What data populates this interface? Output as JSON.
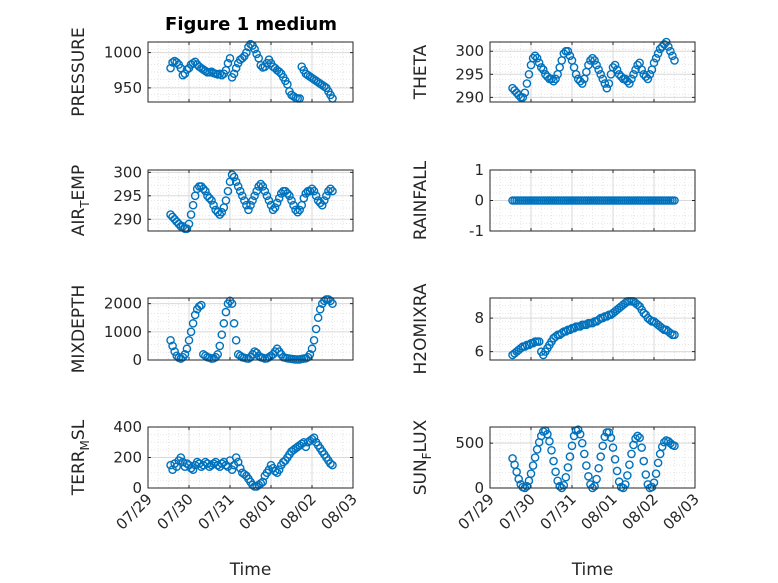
{
  "figure_title": "Figure 1 medium",
  "x_axis_label": "Time",
  "x_ticks": [
    "07/29",
    "07/30",
    "07/31",
    "08/01",
    "08/02",
    "08/03"
  ],
  "colors": {
    "marker": "#0072bd",
    "axis": "#262626",
    "grid": "#d9d9d9"
  },
  "chart_data": [
    {
      "type": "scatter",
      "title": "Figure 1 medium",
      "ylabel": "PRESSURE",
      "xlabel": "",
      "xlim": [
        0,
        5
      ],
      "ylim": [
        930,
        1015
      ],
      "yticks": [
        950,
        1000
      ],
      "grid": true,
      "marker": "circle",
      "x": [
        0.55,
        0.6,
        0.65,
        0.7,
        0.75,
        0.8,
        0.85,
        0.9,
        0.95,
        1.0,
        1.05,
        1.1,
        1.15,
        1.2,
        1.25,
        1.3,
        1.35,
        1.4,
        1.45,
        1.5,
        1.55,
        1.6,
        1.65,
        1.7,
        1.75,
        1.8,
        1.85,
        1.9,
        1.95,
        2.0,
        2.05,
        2.1,
        2.15,
        2.2,
        2.25,
        2.3,
        2.35,
        2.4,
        2.45,
        2.5,
        2.55,
        2.6,
        2.65,
        2.7,
        2.75,
        2.8,
        2.85,
        2.9,
        2.95,
        3.0,
        3.05,
        3.1,
        3.15,
        3.2,
        3.25,
        3.3,
        3.35,
        3.4,
        3.45,
        3.5,
        3.55,
        3.6,
        3.65,
        3.7,
        3.75,
        3.8,
        3.85,
        3.9,
        3.95,
        4.0,
        4.05,
        4.1,
        4.15,
        4.2,
        4.25,
        4.3,
        4.35,
        4.4,
        4.45,
        4.5
      ],
      "y": [
        978,
        986,
        988,
        986,
        983,
        978,
        968,
        970,
        976,
        978,
        983,
        985,
        987,
        983,
        980,
        978,
        976,
        974,
        972,
        972,
        973,
        971,
        970,
        969,
        970,
        968,
        970,
        975,
        985,
        992,
        965,
        970,
        978,
        985,
        990,
        992,
        995,
        1000,
        1008,
        1012,
        1010,
        1005,
        998,
        992,
        982,
        979,
        980,
        985,
        990,
        985,
        980,
        978,
        975,
        973,
        970,
        965,
        960,
        955,
        945,
        940,
        938,
        936,
        935,
        935,
        980,
        975,
        970,
        968,
        966,
        964,
        962,
        960,
        958,
        956,
        954,
        952,
        950,
        945,
        940,
        935
      ]
    },
    {
      "type": "scatter",
      "ylabel": "THETA",
      "xlabel": "",
      "xlim": [
        0,
        5
      ],
      "ylim": [
        289,
        302
      ],
      "yticks": [
        290,
        295,
        300
      ],
      "grid": true,
      "marker": "circle",
      "x": [
        0.55,
        0.6,
        0.65,
        0.7,
        0.75,
        0.8,
        0.85,
        0.9,
        0.95,
        1.0,
        1.05,
        1.1,
        1.15,
        1.2,
        1.25,
        1.3,
        1.35,
        1.4,
        1.45,
        1.5,
        1.55,
        1.6,
        1.65,
        1.7,
        1.75,
        1.8,
        1.85,
        1.9,
        1.95,
        2.0,
        2.05,
        2.1,
        2.15,
        2.2,
        2.25,
        2.3,
        2.35,
        2.4,
        2.45,
        2.5,
        2.55,
        2.6,
        2.65,
        2.7,
        2.75,
        2.8,
        2.85,
        2.9,
        2.95,
        3.0,
        3.05,
        3.1,
        3.15,
        3.2,
        3.25,
        3.3,
        3.35,
        3.4,
        3.45,
        3.5,
        3.55,
        3.6,
        3.65,
        3.7,
        3.75,
        3.8,
        3.85,
        3.9,
        3.95,
        4.0,
        4.05,
        4.1,
        4.15,
        4.2,
        4.25,
        4.3,
        4.35,
        4.4,
        4.45,
        4.5
      ],
      "y": [
        292,
        291.5,
        291,
        290.5,
        290,
        290,
        291,
        293,
        295,
        297,
        298.5,
        299,
        298.5,
        297.5,
        296.5,
        296,
        295,
        294.5,
        294,
        294,
        293.5,
        294,
        295,
        296.5,
        298,
        299.5,
        300,
        300,
        299,
        298,
        296.5,
        295,
        294,
        293.5,
        293,
        294,
        295.5,
        297,
        298,
        298.5,
        298,
        297,
        296,
        295,
        294,
        293,
        292,
        293,
        295,
        296.5,
        297,
        296,
        295,
        294.5,
        294,
        294,
        293.5,
        293,
        294,
        295,
        296,
        297,
        297.5,
        296,
        295,
        294.5,
        294,
        295,
        296,
        297.5,
        298.5,
        299.5,
        300.5,
        301,
        301.5,
        302,
        301,
        300,
        299,
        298
      ]
    },
    {
      "type": "scatter",
      "ylabel": "AIR_TEMP",
      "xlabel": "",
      "xlim": [
        0,
        5
      ],
      "ylim": [
        287.5,
        300.5
      ],
      "yticks": [
        290,
        295,
        300
      ],
      "grid": true,
      "marker": "circle",
      "x": [
        0.55,
        0.6,
        0.65,
        0.7,
        0.75,
        0.8,
        0.85,
        0.9,
        0.95,
        1.0,
        1.05,
        1.1,
        1.15,
        1.2,
        1.25,
        1.3,
        1.35,
        1.4,
        1.45,
        1.5,
        1.55,
        1.6,
        1.65,
        1.7,
        1.75,
        1.8,
        1.85,
        1.9,
        1.95,
        2.0,
        2.05,
        2.1,
        2.15,
        2.2,
        2.25,
        2.3,
        2.35,
        2.4,
        2.45,
        2.5,
        2.55,
        2.6,
        2.65,
        2.7,
        2.75,
        2.8,
        2.85,
        2.9,
        2.95,
        3.0,
        3.05,
        3.1,
        3.15,
        3.2,
        3.25,
        3.3,
        3.35,
        3.4,
        3.45,
        3.5,
        3.55,
        3.6,
        3.65,
        3.7,
        3.75,
        3.8,
        3.85,
        3.9,
        3.95,
        4.0,
        4.05,
        4.1,
        4.15,
        4.2,
        4.25,
        4.3,
        4.35,
        4.4,
        4.45,
        4.5
      ],
      "y": [
        291,
        290.5,
        290,
        289.5,
        289,
        288.5,
        288.5,
        288,
        288,
        289,
        291,
        293,
        295,
        296.5,
        297,
        297,
        296.5,
        296,
        295,
        294.5,
        294,
        293,
        292,
        291.5,
        291,
        291.5,
        292.5,
        294,
        296,
        298,
        299.5,
        299,
        298,
        297,
        296,
        295,
        294,
        293,
        292,
        293,
        294,
        295,
        296,
        297,
        297.5,
        297,
        296,
        295,
        294,
        293,
        292,
        292.5,
        293.5,
        294.5,
        295.5,
        296,
        296,
        295.5,
        295,
        294,
        293,
        292,
        291.5,
        292,
        293,
        294.5,
        295.5,
        296,
        296,
        296.5,
        296,
        295,
        294,
        293.5,
        293,
        294,
        295,
        296,
        296.5,
        296
      ]
    },
    {
      "type": "scatter",
      "ylabel": "RAINFALL",
      "xlabel": "",
      "xlim": [
        0,
        5
      ],
      "ylim": [
        -1,
        1
      ],
      "yticks": [
        -1,
        0,
        1
      ],
      "grid": true,
      "marker": "circle",
      "x": [
        0.55,
        0.6,
        0.65,
        0.7,
        0.75,
        0.8,
        0.85,
        0.9,
        0.95,
        1.0,
        1.05,
        1.1,
        1.15,
        1.2,
        1.25,
        1.3,
        1.35,
        1.4,
        1.45,
        1.5,
        1.55,
        1.6,
        1.65,
        1.7,
        1.75,
        1.8,
        1.85,
        1.9,
        1.95,
        2.0,
        2.05,
        2.1,
        2.15,
        2.2,
        2.25,
        2.3,
        2.35,
        2.4,
        2.45,
        2.5,
        2.55,
        2.6,
        2.65,
        2.7,
        2.75,
        2.8,
        2.85,
        2.9,
        2.95,
        3.0,
        3.05,
        3.1,
        3.15,
        3.2,
        3.25,
        3.3,
        3.35,
        3.4,
        3.45,
        3.5,
        3.55,
        3.6,
        3.65,
        3.7,
        3.75,
        3.8,
        3.85,
        3.9,
        3.95,
        4.0,
        4.05,
        4.1,
        4.15,
        4.2,
        4.25,
        4.3,
        4.35,
        4.4,
        4.45,
        4.5
      ],
      "y": [
        0,
        0,
        0,
        0,
        0,
        0,
        0,
        0,
        0,
        0,
        0,
        0,
        0,
        0,
        0,
        0,
        0,
        0,
        0,
        0,
        0,
        0,
        0,
        0,
        0,
        0,
        0,
        0,
        0,
        0,
        0,
        0,
        0,
        0,
        0,
        0,
        0,
        0,
        0,
        0,
        0,
        0,
        0,
        0,
        0,
        0,
        0,
        0,
        0,
        0,
        0,
        0,
        0,
        0,
        0,
        0,
        0,
        0,
        0,
        0,
        0,
        0,
        0,
        0,
        0,
        0,
        0,
        0,
        0,
        0,
        0,
        0,
        0,
        0,
        0,
        0,
        0,
        0,
        0,
        0
      ]
    },
    {
      "type": "scatter",
      "ylabel": "MIXDEPTH",
      "xlabel": "",
      "xlim": [
        0,
        5
      ],
      "ylim": [
        0,
        2200
      ],
      "yticks": [
        0,
        1000,
        2000
      ],
      "grid": true,
      "marker": "circle",
      "x": [
        0.55,
        0.6,
        0.65,
        0.7,
        0.75,
        0.8,
        0.85,
        0.9,
        0.95,
        1.0,
        1.05,
        1.1,
        1.15,
        1.2,
        1.25,
        1.3,
        1.35,
        1.4,
        1.45,
        1.5,
        1.55,
        1.6,
        1.65,
        1.7,
        1.75,
        1.8,
        1.85,
        1.9,
        1.95,
        2.0,
        2.05,
        2.1,
        2.15,
        2.2,
        2.25,
        2.3,
        2.35,
        2.4,
        2.45,
        2.5,
        2.55,
        2.6,
        2.65,
        2.7,
        2.75,
        2.8,
        2.85,
        2.9,
        2.95,
        3.0,
        3.05,
        3.1,
        3.15,
        3.2,
        3.25,
        3.3,
        3.35,
        3.4,
        3.45,
        3.5,
        3.55,
        3.6,
        3.65,
        3.7,
        3.75,
        3.8,
        3.85,
        3.9,
        3.95,
        4.0,
        4.05,
        4.1,
        4.15,
        4.2,
        4.25,
        4.3,
        4.35,
        4.4,
        4.45,
        4.5
      ],
      "y": [
        700,
        500,
        300,
        150,
        80,
        50,
        100,
        200,
        400,
        700,
        1000,
        1300,
        1600,
        1800,
        1900,
        1950,
        200,
        150,
        100,
        80,
        50,
        60,
        100,
        200,
        500,
        900,
        1300,
        1700,
        2000,
        2100,
        2000,
        1300,
        700,
        200,
        150,
        100,
        80,
        60,
        50,
        100,
        200,
        300,
        250,
        150,
        100,
        80,
        50,
        60,
        100,
        150,
        200,
        300,
        400,
        300,
        200,
        100,
        80,
        60,
        50,
        40,
        30,
        20,
        20,
        20,
        40,
        50,
        60,
        100,
        200,
        400,
        700,
        1100,
        1500,
        1800,
        2000,
        2100,
        2150,
        2150,
        2100,
        2000
      ]
    },
    {
      "type": "scatter",
      "ylabel": "H2OMIXRA",
      "xlabel": "",
      "xlim": [
        0,
        5
      ],
      "ylim": [
        5.5,
        9.2
      ],
      "yticks": [
        6,
        8
      ],
      "grid": true,
      "marker": "circle",
      "x": [
        0.55,
        0.6,
        0.65,
        0.7,
        0.75,
        0.8,
        0.85,
        0.9,
        0.95,
        1.0,
        1.05,
        1.1,
        1.15,
        1.2,
        1.25,
        1.3,
        1.35,
        1.4,
        1.45,
        1.5,
        1.55,
        1.6,
        1.65,
        1.7,
        1.75,
        1.8,
        1.85,
        1.9,
        1.95,
        2.0,
        2.05,
        2.1,
        2.15,
        2.2,
        2.25,
        2.3,
        2.35,
        2.4,
        2.45,
        2.5,
        2.55,
        2.6,
        2.65,
        2.7,
        2.75,
        2.8,
        2.85,
        2.9,
        2.95,
        3.0,
        3.05,
        3.1,
        3.15,
        3.2,
        3.25,
        3.3,
        3.35,
        3.4,
        3.45,
        3.5,
        3.55,
        3.6,
        3.65,
        3.7,
        3.75,
        3.8,
        3.85,
        3.9,
        3.95,
        4.0,
        4.05,
        4.1,
        4.15,
        4.2,
        4.25,
        4.3,
        4.35,
        4.4,
        4.45,
        4.5
      ],
      "y": [
        5.8,
        5.9,
        6.0,
        6.1,
        6.2,
        6.3,
        6.3,
        6.4,
        6.4,
        6.5,
        6.5,
        6.6,
        6.6,
        6.6,
        6.0,
        5.8,
        6.0,
        6.2,
        6.4,
        6.6,
        6.8,
        6.9,
        7.0,
        7.0,
        7.1,
        7.2,
        7.2,
        7.3,
        7.3,
        7.4,
        7.4,
        7.5,
        7.5,
        7.5,
        7.6,
        7.6,
        7.6,
        7.7,
        7.7,
        7.7,
        7.8,
        7.8,
        7.9,
        8.0,
        8.0,
        8.1,
        8.1,
        8.2,
        8.2,
        8.3,
        8.4,
        8.5,
        8.6,
        8.7,
        8.8,
        8.9,
        9.0,
        9.0,
        9.0,
        9.0,
        8.9,
        8.8,
        8.7,
        8.5,
        8.3,
        8.2,
        8.0,
        7.9,
        7.8,
        7.8,
        7.7,
        7.6,
        7.5,
        7.4,
        7.3,
        7.3,
        7.2,
        7.1,
        7.0,
        7.0
      ]
    },
    {
      "type": "scatter",
      "ylabel": "TERR_MSL",
      "xlabel": "Time",
      "xlim": [
        0,
        5
      ],
      "ylim": [
        0,
        400
      ],
      "yticks": [
        0,
        200,
        400
      ],
      "grid": true,
      "marker": "circle",
      "x": [
        0.55,
        0.6,
        0.65,
        0.7,
        0.75,
        0.8,
        0.85,
        0.9,
        0.95,
        1.0,
        1.05,
        1.1,
        1.15,
        1.2,
        1.25,
        1.3,
        1.35,
        1.4,
        1.45,
        1.5,
        1.55,
        1.6,
        1.65,
        1.7,
        1.75,
        1.8,
        1.85,
        1.9,
        1.95,
        2.0,
        2.05,
        2.1,
        2.15,
        2.2,
        2.25,
        2.3,
        2.35,
        2.4,
        2.45,
        2.5,
        2.55,
        2.6,
        2.65,
        2.7,
        2.75,
        2.8,
        2.85,
        2.9,
        2.95,
        3.0,
        3.05,
        3.1,
        3.15,
        3.2,
        3.25,
        3.3,
        3.35,
        3.4,
        3.45,
        3.5,
        3.55,
        3.6,
        3.65,
        3.7,
        3.75,
        3.8,
        3.85,
        3.9,
        3.95,
        4.0,
        4.05,
        4.1,
        4.15,
        4.2,
        4.25,
        4.3,
        4.35,
        4.4,
        4.45,
        4.5
      ],
      "y": [
        150,
        120,
        160,
        140,
        180,
        200,
        170,
        140,
        160,
        150,
        130,
        120,
        150,
        170,
        160,
        140,
        150,
        170,
        160,
        140,
        150,
        160,
        170,
        150,
        140,
        160,
        170,
        150,
        140,
        180,
        120,
        150,
        200,
        170,
        130,
        100,
        90,
        80,
        60,
        40,
        20,
        10,
        10,
        20,
        30,
        40,
        80,
        100,
        120,
        150,
        130,
        110,
        100,
        120,
        150,
        170,
        180,
        200,
        220,
        240,
        250,
        260,
        270,
        280,
        290,
        300,
        270,
        300,
        310,
        320,
        330,
        300,
        280,
        260,
        240,
        220,
        200,
        180,
        160,
        150
      ]
    },
    {
      "type": "scatter",
      "ylabel": "SUN_FLUX",
      "xlabel": "Time",
      "xlim": [
        0,
        5
      ],
      "ylim": [
        0,
        680
      ],
      "yticks": [
        0,
        500
      ],
      "grid": true,
      "marker": "circle",
      "x": [
        0.55,
        0.6,
        0.65,
        0.7,
        0.75,
        0.8,
        0.85,
        0.9,
        0.95,
        1.0,
        1.05,
        1.1,
        1.15,
        1.2,
        1.25,
        1.3,
        1.35,
        1.4,
        1.45,
        1.5,
        1.55,
        1.6,
        1.65,
        1.7,
        1.75,
        1.8,
        1.85,
        1.9,
        1.95,
        2.0,
        2.05,
        2.1,
        2.15,
        2.2,
        2.25,
        2.3,
        2.35,
        2.4,
        2.45,
        2.5,
        2.55,
        2.6,
        2.65,
        2.7,
        2.75,
        2.8,
        2.85,
        2.9,
        2.95,
        3.0,
        3.05,
        3.1,
        3.15,
        3.2,
        3.25,
        3.3,
        3.35,
        3.4,
        3.45,
        3.5,
        3.55,
        3.6,
        3.65,
        3.7,
        3.75,
        3.8,
        3.85,
        3.9,
        3.95,
        4.0,
        4.05,
        4.1,
        4.15,
        4.2,
        4.25,
        4.3,
        4.35,
        4.4,
        4.45,
        4.5
      ],
      "y": [
        330,
        260,
        180,
        100,
        40,
        10,
        0,
        20,
        80,
        160,
        250,
        340,
        430,
        510,
        580,
        630,
        640,
        600,
        520,
        420,
        300,
        180,
        80,
        20,
        0,
        30,
        120,
        230,
        350,
        470,
        580,
        640,
        650,
        600,
        500,
        380,
        250,
        130,
        40,
        0,
        20,
        100,
        220,
        350,
        470,
        570,
        620,
        620,
        560,
        450,
        320,
        190,
        70,
        10,
        0,
        40,
        140,
        260,
        380,
        480,
        550,
        580,
        560,
        450,
        300,
        150,
        40,
        0,
        10,
        60,
        160,
        280,
        380,
        460,
        510,
        530,
        520,
        500,
        480,
        470
      ]
    }
  ]
}
